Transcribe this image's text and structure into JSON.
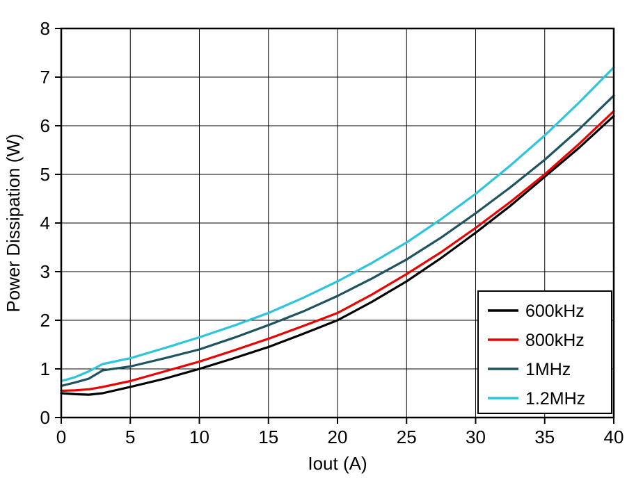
{
  "chart_data": {
    "type": "line",
    "title": "",
    "xlabel": "Iout (A)",
    "ylabel": "Power Dissipation (W)",
    "xlim": [
      0,
      40
    ],
    "ylim": [
      0,
      8
    ],
    "xticks": [
      0,
      5,
      10,
      15,
      20,
      25,
      30,
      35,
      40
    ],
    "yticks": [
      0,
      1,
      2,
      3,
      4,
      5,
      6,
      7,
      8
    ],
    "grid": true,
    "legend_position": "bottom-right",
    "x": [
      0,
      1,
      2,
      3,
      5,
      7.5,
      10,
      12.5,
      15,
      17.5,
      20,
      22.5,
      25,
      27.5,
      30,
      32.5,
      35,
      37.5,
      40
    ],
    "series": [
      {
        "name": "600kHz",
        "color": "#000000",
        "values": [
          0.5,
          0.48,
          0.47,
          0.5,
          0.63,
          0.8,
          1.0,
          1.22,
          1.45,
          1.72,
          2.0,
          2.38,
          2.8,
          3.28,
          3.8,
          4.35,
          4.95,
          5.55,
          6.2
        ]
      },
      {
        "name": "800kHz",
        "color": "#ec0000",
        "values": [
          0.55,
          0.56,
          0.58,
          0.63,
          0.75,
          0.95,
          1.15,
          1.38,
          1.62,
          1.88,
          2.15,
          2.53,
          2.95,
          3.4,
          3.9,
          4.43,
          5.0,
          5.63,
          6.3
        ]
      },
      {
        "name": "1MHz",
        "color": "#1e5360",
        "values": [
          0.65,
          0.72,
          0.8,
          0.97,
          1.05,
          1.22,
          1.4,
          1.64,
          1.9,
          2.18,
          2.5,
          2.86,
          3.25,
          3.7,
          4.2,
          4.73,
          5.3,
          5.93,
          6.62
        ]
      },
      {
        "name": "1.2MHz",
        "color": "#2cc5dc",
        "values": [
          0.75,
          0.83,
          0.95,
          1.1,
          1.22,
          1.43,
          1.65,
          1.89,
          2.15,
          2.46,
          2.8,
          3.18,
          3.6,
          4.08,
          4.6,
          5.18,
          5.8,
          6.48,
          7.2
        ]
      }
    ]
  }
}
